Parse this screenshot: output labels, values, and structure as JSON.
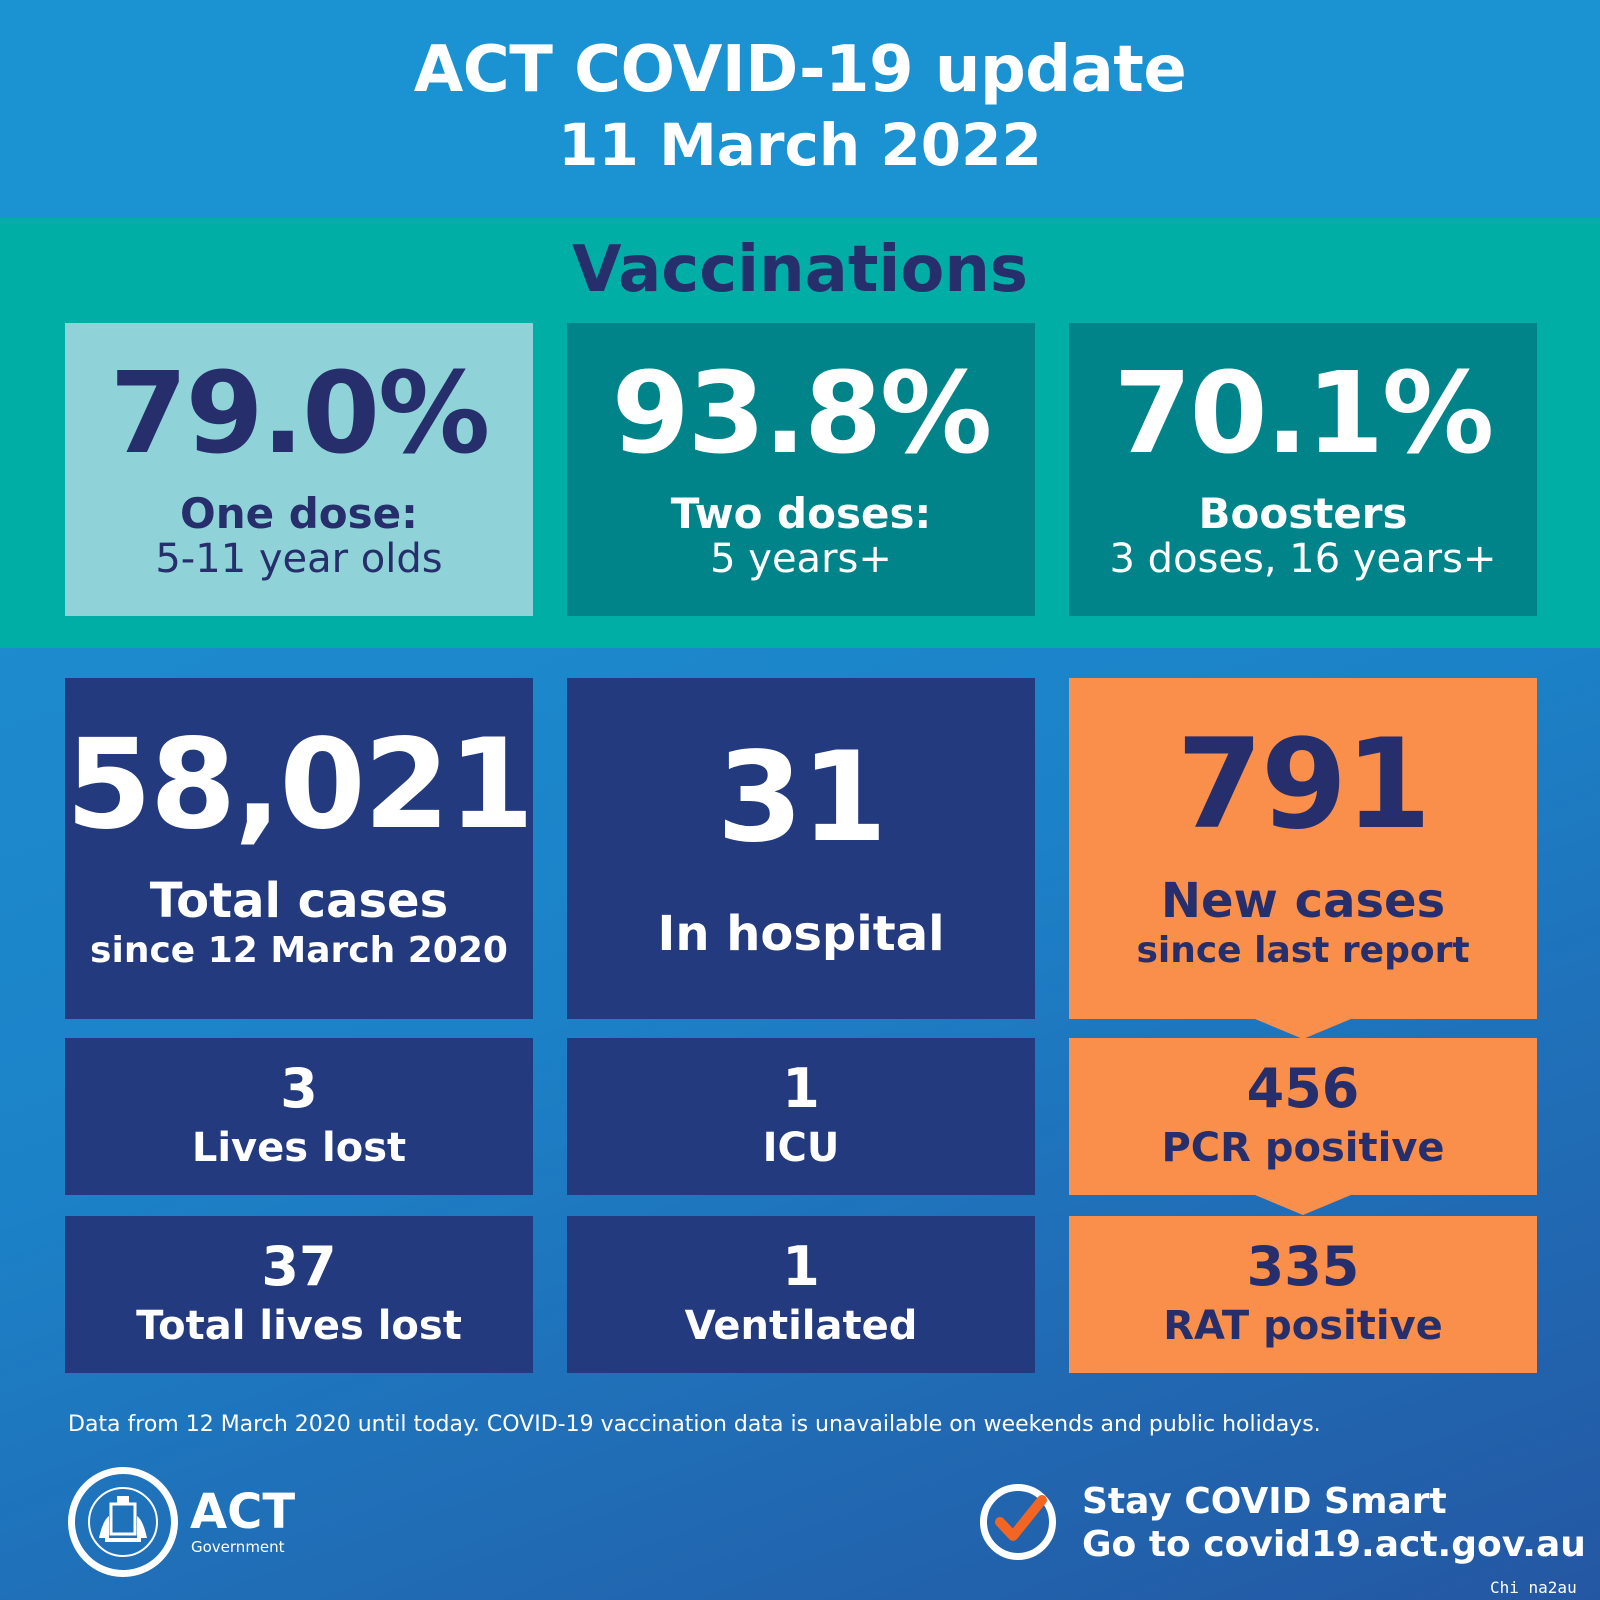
{
  "header": {
    "title": "ACT COVID-19 update",
    "date": "11 March 2022"
  },
  "vaccinations": {
    "heading": "Vaccinations",
    "items": [
      {
        "value": "79.0%",
        "line1": "One dose:",
        "line2": "5-11 year olds"
      },
      {
        "value": "93.8%",
        "line1": "Two doses:",
        "line2": "5 years+"
      },
      {
        "value": "70.1%",
        "line1": "Boosters",
        "line2": "3 doses, 16 years+"
      }
    ]
  },
  "cases": {
    "total": {
      "value": "58,021",
      "line1": "Total cases",
      "line2": "since 12 March 2020"
    },
    "hospital": {
      "value": "31",
      "line1": "In hospital"
    },
    "new": {
      "value": "791",
      "line1": "New cases",
      "line2": "since last report"
    },
    "lives_lost": {
      "value": "3",
      "label": "Lives lost"
    },
    "icu": {
      "value": "1",
      "label": "ICU"
    },
    "pcr": {
      "value": "456",
      "label": "PCR positive"
    },
    "total_lives_lost": {
      "value": "37",
      "label": "Total lives lost"
    },
    "ventilated": {
      "value": "1",
      "label": "Ventilated"
    },
    "rat": {
      "value": "335",
      "label": "RAT positive"
    }
  },
  "footnote": "Data from 12 March 2020 until today.  COVID-19 vaccination data is unavailable on weekends and public holidays.",
  "footer": {
    "logo_text": "ACT",
    "logo_subtext": "Government",
    "stay_smart": "Stay COVID Smart",
    "website": "Go to covid19.act.gov.au"
  },
  "watermark": "Chi na2au",
  "colors": {
    "header_blue": "#1b93d2",
    "teal_band": "#00aea6",
    "light_teal_box": "#8fd3d8",
    "dark_teal_box": "#00848a",
    "navy_box": "#233a7e",
    "orange_box": "#f98f4b",
    "dark_text": "#262f6c",
    "check_orange": "#f26522"
  },
  "icons": [
    "act-government-crest-icon",
    "check-circle-icon"
  ]
}
